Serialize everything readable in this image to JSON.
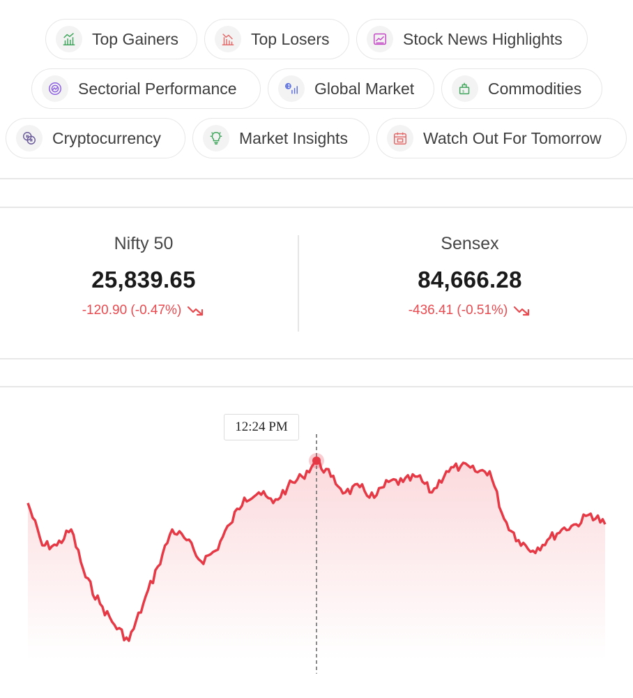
{
  "chips": [
    {
      "label": "Top Gainers",
      "icon": "top-gainers-icon",
      "color": "#3fa55b"
    },
    {
      "label": "Top Losers",
      "icon": "top-losers-icon",
      "color": "#e46a6a"
    },
    {
      "label": "Stock News Highlights",
      "icon": "news-icon",
      "color": "#c347c5"
    },
    {
      "label": "Sectorial Performance",
      "icon": "sector-icon",
      "color": "#8c5fe0"
    },
    {
      "label": "Global Market",
      "icon": "global-market-icon",
      "color": "#5a6ee0"
    },
    {
      "label": "Commodities",
      "icon": "commodities-icon",
      "color": "#3fa55b"
    },
    {
      "label": "Cryptocurrency",
      "icon": "crypto-icon",
      "color": "#6a5a9a"
    },
    {
      "label": "Market Insights",
      "icon": "insights-icon",
      "color": "#3fa55b"
    },
    {
      "label": "Watch Out For Tomorrow",
      "icon": "calendar-icon",
      "color": "#e46a6a"
    }
  ],
  "indices": [
    {
      "name": "Nifty 50",
      "value": "25,839.65",
      "change": "-120.90 (-0.47%)"
    },
    {
      "name": "Sensex",
      "value": "84,666.28",
      "change": "-436.41 (-0.51%)"
    }
  ],
  "chart": {
    "tooltip_time": "12:24 PM",
    "line_color": "#e63946",
    "fill_color": "#fbd7da",
    "marker_index": 20
  },
  "chart_data": {
    "type": "area",
    "title": "",
    "xlabel": "",
    "ylabel": "",
    "series": [
      {
        "values": [
          25915,
          25875,
          25875,
          25890,
          25845,
          25820,
          25800,
          25785,
          25820,
          25855,
          25890,
          25880,
          25860,
          25870,
          25895,
          25920,
          25925,
          25915,
          25930,
          25940,
          25955,
          25940,
          25925,
          25930,
          25920,
          25935,
          25935,
          25940,
          25925,
          25945,
          25950,
          25945,
          25945,
          25900,
          25880,
          25870,
          25880,
          25890,
          25895,
          25905,
          25895
        ]
      }
    ]
  }
}
